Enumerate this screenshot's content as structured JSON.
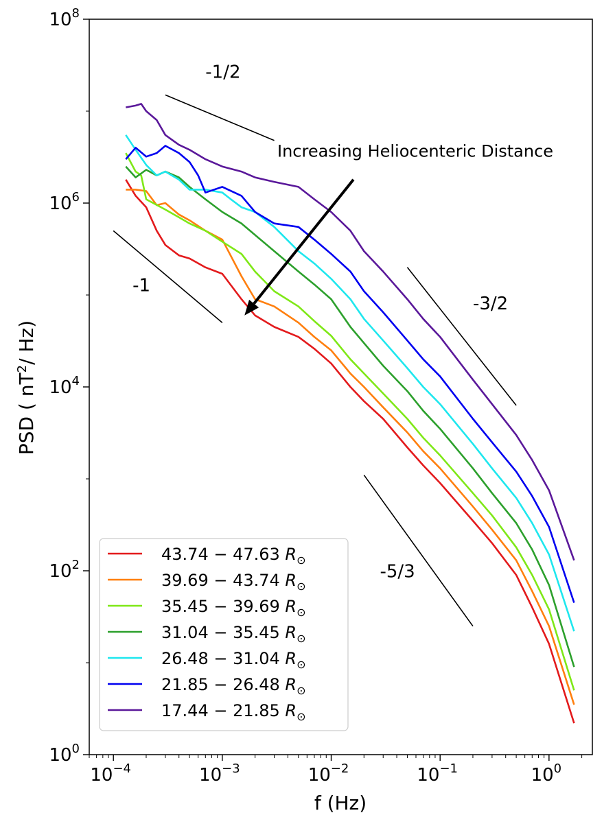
{
  "chart_data": {
    "type": "line",
    "scale": "log-log",
    "xlabel": "f (Hz)",
    "ylabel_prefix": "PSD ( nT",
    "ylabel_sup": "2",
    "ylabel_suffix": "/ Hz)",
    "xlim": [
      6e-05,
      2.5
    ],
    "ylim": [
      1,
      100000000
    ],
    "x_ticks": [
      {
        "value": 0.0001,
        "base": "10",
        "exp": "−4"
      },
      {
        "value": 0.001,
        "base": "10",
        "exp": "−3"
      },
      {
        "value": 0.01,
        "base": "10",
        "exp": "−2"
      },
      {
        "value": 0.1,
        "base": "10",
        "exp": "−1"
      },
      {
        "value": 1,
        "base": "10",
        "exp": "0"
      }
    ],
    "y_ticks": [
      {
        "value": 1,
        "base": "10",
        "exp": "0"
      },
      {
        "value": 100,
        "base": "10",
        "exp": "2"
      },
      {
        "value": 10000,
        "base": "10",
        "exp": "4"
      },
      {
        "value": 1000000,
        "base": "10",
        "exp": "6"
      },
      {
        "value": 100000000,
        "base": "10",
        "exp": "8"
      }
    ],
    "series": [
      {
        "name_range": "43.74  −  47.63",
        "color": "#e31a1c",
        "points": [
          [
            0.00013,
            1800000
          ],
          [
            0.00016,
            1200000
          ],
          [
            0.0002,
            900000
          ],
          [
            0.00025,
            500000
          ],
          [
            0.0003,
            350000
          ],
          [
            0.0004,
            270000
          ],
          [
            0.0005,
            250000
          ],
          [
            0.0007,
            200000
          ],
          [
            0.001,
            170000
          ],
          [
            0.0015,
            90000
          ],
          [
            0.002,
            60000
          ],
          [
            0.003,
            45000
          ],
          [
            0.005,
            35000
          ],
          [
            0.007,
            26000
          ],
          [
            0.01,
            18000
          ],
          [
            0.015,
            10000
          ],
          [
            0.02,
            7000
          ],
          [
            0.03,
            4500
          ],
          [
            0.05,
            2200
          ],
          [
            0.07,
            1400
          ],
          [
            0.1,
            900
          ],
          [
            0.2,
            350
          ],
          [
            0.3,
            200
          ],
          [
            0.5,
            90
          ],
          [
            0.7,
            40
          ],
          [
            1,
            16
          ],
          [
            1.7,
            2.2
          ]
        ]
      },
      {
        "name_range": "39.69  −  43.74",
        "color": "#ff7f0e",
        "points": [
          [
            0.00013,
            1400000
          ],
          [
            0.00016,
            1400000
          ],
          [
            0.0002,
            1350000
          ],
          [
            0.00025,
            950000
          ],
          [
            0.0003,
            1000000
          ],
          [
            0.0004,
            750000
          ],
          [
            0.0005,
            650000
          ],
          [
            0.0007,
            500000
          ],
          [
            0.001,
            400000
          ],
          [
            0.0015,
            160000
          ],
          [
            0.002,
            90000
          ],
          [
            0.003,
            75000
          ],
          [
            0.005,
            50000
          ],
          [
            0.007,
            35000
          ],
          [
            0.01,
            25000
          ],
          [
            0.015,
            14000
          ],
          [
            0.02,
            10000
          ],
          [
            0.03,
            6000
          ],
          [
            0.05,
            3200
          ],
          [
            0.07,
            2000
          ],
          [
            0.1,
            1300
          ],
          [
            0.2,
            500
          ],
          [
            0.3,
            280
          ],
          [
            0.5,
            130
          ],
          [
            0.7,
            60
          ],
          [
            1,
            25
          ],
          [
            1.7,
            3.5
          ]
        ]
      },
      {
        "name_range": "35.45  −  39.69",
        "color": "#7fe817",
        "points": [
          [
            0.00013,
            3500000
          ],
          [
            0.00016,
            2200000
          ],
          [
            0.00018,
            2000000
          ],
          [
            0.0002,
            1100000
          ],
          [
            0.0003,
            850000
          ],
          [
            0.0004,
            700000
          ],
          [
            0.0005,
            600000
          ],
          [
            0.0007,
            500000
          ],
          [
            0.001,
            380000
          ],
          [
            0.0015,
            280000
          ],
          [
            0.002,
            180000
          ],
          [
            0.003,
            110000
          ],
          [
            0.005,
            75000
          ],
          [
            0.007,
            52000
          ],
          [
            0.01,
            36000
          ],
          [
            0.015,
            20000
          ],
          [
            0.02,
            14000
          ],
          [
            0.03,
            8500
          ],
          [
            0.05,
            4500
          ],
          [
            0.07,
            2800
          ],
          [
            0.1,
            1800
          ],
          [
            0.2,
            700
          ],
          [
            0.3,
            400
          ],
          [
            0.5,
            180
          ],
          [
            0.7,
            90
          ],
          [
            1,
            38
          ],
          [
            1.7,
            5
          ]
        ]
      },
      {
        "name_range": "31.04  −  35.45",
        "color": "#2ca02c",
        "points": [
          [
            0.00013,
            2500000
          ],
          [
            0.00016,
            1900000
          ],
          [
            0.0002,
            2300000
          ],
          [
            0.00025,
            2000000
          ],
          [
            0.0003,
            2200000
          ],
          [
            0.0004,
            1900000
          ],
          [
            0.0005,
            1500000
          ],
          [
            0.0007,
            1100000
          ],
          [
            0.001,
            800000
          ],
          [
            0.0015,
            600000
          ],
          [
            0.002,
            450000
          ],
          [
            0.003,
            300000
          ],
          [
            0.005,
            180000
          ],
          [
            0.007,
            130000
          ],
          [
            0.01,
            90000
          ],
          [
            0.015,
            45000
          ],
          [
            0.02,
            30000
          ],
          [
            0.03,
            17000
          ],
          [
            0.05,
            9000
          ],
          [
            0.07,
            5500
          ],
          [
            0.1,
            3500
          ],
          [
            0.2,
            1300
          ],
          [
            0.3,
            700
          ],
          [
            0.5,
            330
          ],
          [
            0.7,
            170
          ],
          [
            1,
            70
          ],
          [
            1.7,
            9
          ]
        ]
      },
      {
        "name_range": "26.48  −  31.04",
        "color": "#1ee7ee",
        "points": [
          [
            0.00013,
            5500000
          ],
          [
            0.00016,
            3800000
          ],
          [
            0.0002,
            2600000
          ],
          [
            0.00025,
            2000000
          ],
          [
            0.0003,
            2200000
          ],
          [
            0.0004,
            1800000
          ],
          [
            0.0005,
            1400000
          ],
          [
            0.0007,
            1400000
          ],
          [
            0.001,
            1300000
          ],
          [
            0.0012,
            1100000
          ],
          [
            0.0015,
            900000
          ],
          [
            0.002,
            800000
          ],
          [
            0.003,
            550000
          ],
          [
            0.005,
            300000
          ],
          [
            0.007,
            220000
          ],
          [
            0.01,
            150000
          ],
          [
            0.015,
            90000
          ],
          [
            0.02,
            55000
          ],
          [
            0.03,
            32000
          ],
          [
            0.05,
            16000
          ],
          [
            0.07,
            10000
          ],
          [
            0.1,
            6500
          ],
          [
            0.2,
            2400
          ],
          [
            0.3,
            1300
          ],
          [
            0.5,
            620
          ],
          [
            0.7,
            330
          ],
          [
            1,
            150
          ],
          [
            1.7,
            22
          ]
        ]
      },
      {
        "name_range": "21.85  −  26.48",
        "color": "#0000f0",
        "points": [
          [
            0.00013,
            3000000
          ],
          [
            0.00016,
            4000000
          ],
          [
            0.0002,
            3200000
          ],
          [
            0.00025,
            3500000
          ],
          [
            0.0003,
            4200000
          ],
          [
            0.0004,
            3500000
          ],
          [
            0.0005,
            2800000
          ],
          [
            0.0006,
            2000000
          ],
          [
            0.0007,
            1300000
          ],
          [
            0.001,
            1500000
          ],
          [
            0.0015,
            1200000
          ],
          [
            0.002,
            800000
          ],
          [
            0.003,
            600000
          ],
          [
            0.005,
            550000
          ],
          [
            0.007,
            400000
          ],
          [
            0.01,
            280000
          ],
          [
            0.015,
            180000
          ],
          [
            0.02,
            110000
          ],
          [
            0.03,
            65000
          ],
          [
            0.05,
            32000
          ],
          [
            0.07,
            20000
          ],
          [
            0.1,
            13000
          ],
          [
            0.2,
            4500
          ],
          [
            0.3,
            2500
          ],
          [
            0.5,
            1200
          ],
          [
            0.7,
            650
          ],
          [
            1,
            300
          ],
          [
            1.7,
            45
          ]
        ]
      },
      {
        "name_range": "17.44  −  21.85",
        "color": "#5a189a",
        "points": [
          [
            0.00013,
            11000000
          ],
          [
            0.00016,
            11500000
          ],
          [
            0.00018,
            12000000
          ],
          [
            0.0002,
            10000000
          ],
          [
            0.00025,
            8000000
          ],
          [
            0.0003,
            5500000
          ],
          [
            0.0004,
            4300000
          ],
          [
            0.0005,
            3800000
          ],
          [
            0.0007,
            3000000
          ],
          [
            0.001,
            2500000
          ],
          [
            0.0015,
            2200000
          ],
          [
            0.002,
            1900000
          ],
          [
            0.003,
            1700000
          ],
          [
            0.005,
            1500000
          ],
          [
            0.007,
            1100000
          ],
          [
            0.01,
            800000
          ],
          [
            0.015,
            500000
          ],
          [
            0.02,
            300000
          ],
          [
            0.03,
            180000
          ],
          [
            0.05,
            90000
          ],
          [
            0.07,
            55000
          ],
          [
            0.1,
            35000
          ],
          [
            0.2,
            12000
          ],
          [
            0.3,
            6500
          ],
          [
            0.5,
            3000
          ],
          [
            0.7,
            1600
          ],
          [
            1,
            750
          ],
          [
            1.7,
            130
          ]
        ]
      }
    ],
    "legend_unit": "R",
    "legend_unit_sub": "⊙",
    "legend_position": "bottom-left",
    "slope_lines": [
      {
        "label": "-1/2",
        "x1": 0.0003,
        "y1": 15000000,
        "x2": 0.003,
        "y2": 4800000,
        "label_x": 0.0007,
        "label_y": 23000000
      },
      {
        "label": "-1",
        "x1": 0.0001,
        "y1": 500000,
        "x2": 0.001,
        "y2": 50000,
        "label_x": 0.00015,
        "label_y": 110000
      },
      {
        "label": "-3/2",
        "x1": 0.05,
        "y1": 200000,
        "x2": 0.5,
        "y2": 6300,
        "label_x": 0.2,
        "label_y": 70000
      },
      {
        "label": "-5/3",
        "x1": 0.02,
        "y1": 1100,
        "x2": 0.2,
        "y2": 25,
        "label_x": 0.028,
        "label_y": 85
      }
    ],
    "arrow": {
      "label": "Increasing Heliocenteric Distance",
      "from": [
        0.016,
        1800000
      ],
      "to": [
        0.0016,
        60000
      ],
      "label_x": 0.0032,
      "label_y": 3200000
    }
  }
}
